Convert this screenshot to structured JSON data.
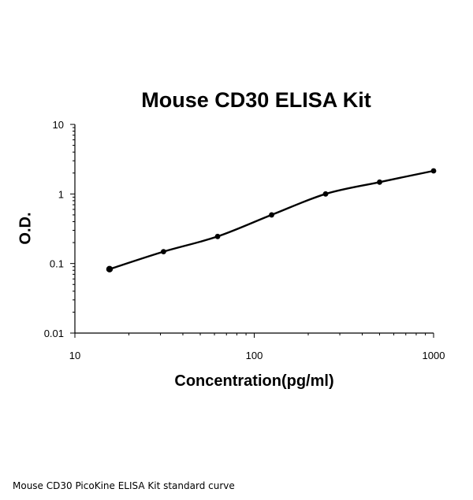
{
  "chart_data": {
    "type": "scatter",
    "title": "Mouse CD30 ELISA Kit",
    "xlabel": "Concentration(pg/ml)",
    "ylabel": "O.D.",
    "x_scale": "log",
    "y_scale": "log",
    "xlim": [
      10,
      1000
    ],
    "ylim": [
      0.01,
      10
    ],
    "x_ticks": [
      "10",
      "100",
      "1000"
    ],
    "y_ticks": [
      "10",
      "1",
      "0.1",
      "0.01"
    ],
    "grid": false,
    "legend": "none",
    "series": [
      {
        "x": [
          15.6,
          31.2,
          62.5,
          125,
          250,
          500,
          1000
        ],
        "y": [
          0.083,
          0.148,
          0.245,
          0.5,
          1.0,
          1.48,
          2.15
        ],
        "marker": "dot",
        "fit": "smooth curve"
      }
    ],
    "colors": {
      "marks": "#000000"
    }
  },
  "caption": "Mouse CD30 PicoKine ELISA Kit standard curve"
}
